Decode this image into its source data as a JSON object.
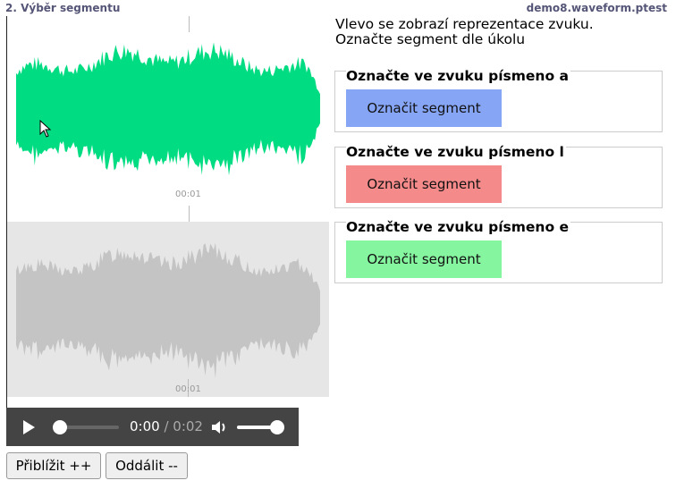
{
  "header": {
    "section_title": "2. Výběr segmentu",
    "app_name": "demo8.waveform.ptest"
  },
  "waveform": {
    "top_time_label": "00:01",
    "bottom_time_label": "00:01",
    "colors": {
      "active": "#00dc82",
      "overview": "#c4c4c4",
      "overview_bg": "#e6e6e6"
    }
  },
  "player": {
    "current_time": "0:00",
    "separator": " / ",
    "duration": "0:02"
  },
  "zoom": {
    "zoom_in_label": "Přiblížit ++",
    "zoom_out_label": "Oddálit --"
  },
  "instructions": {
    "line1": "Vlevo se zobrazí reprezentace zvuku.",
    "line2": "Označte segment dle úkolu"
  },
  "tasks": [
    {
      "title": "Označte ve zvuku písmeno a",
      "button_label": "Označit segment",
      "color": "#86a5f5"
    },
    {
      "title": "Označte ve zvuku písmeno l",
      "button_label": "Označit segment",
      "color": "#f58a8a"
    },
    {
      "title": "Označte ve zvuku písmeno e",
      "button_label": "Označit segment",
      "color": "#86f5a0"
    }
  ]
}
